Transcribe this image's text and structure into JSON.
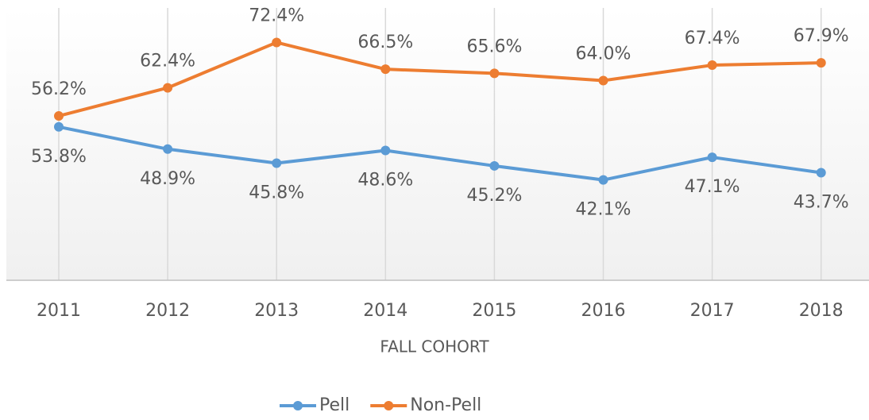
{
  "chart_data": {
    "type": "line",
    "x_label": "FALL COHORT",
    "categories": [
      "2011",
      "2012",
      "2013",
      "2014",
      "2015",
      "2016",
      "2017",
      "2018"
    ],
    "series": [
      {
        "name": "Pell",
        "color": "#5b9bd5",
        "values": [
          53.8,
          48.9,
          45.8,
          48.6,
          45.2,
          42.1,
          47.1,
          43.7
        ],
        "value_labels": [
          "53.8%",
          "48.9%",
          "45.8%",
          "48.6%",
          "45.2%",
          "42.1%",
          "47.1%",
          "43.7%"
        ]
      },
      {
        "name": "Non-Pell",
        "color": "#ed7d31",
        "values": [
          56.2,
          62.4,
          72.4,
          66.5,
          65.6,
          64.0,
          67.4,
          67.9
        ],
        "value_labels": [
          "56.2%",
          "62.4%",
          "72.4%",
          "66.5%",
          "65.6%",
          "64.0%",
          "67.4%",
          "67.9%"
        ]
      }
    ],
    "ylim": [
      20,
      80
    ],
    "legend": "bottom"
  }
}
